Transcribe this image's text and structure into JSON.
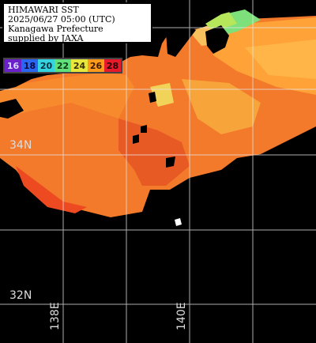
{
  "title": {
    "lines": [
      "HIMAWARI SST",
      "2025/06/27 05:00 (UTC)",
      "Kanagawa Prefecture",
      "supplied by JAXA"
    ]
  },
  "legend": {
    "items": [
      {
        "label": "16",
        "color": "#6a22c8",
        "text_color": "#d8d8ff"
      },
      {
        "label": "18",
        "color": "#2b66f0",
        "text_color": "#0a0a40"
      },
      {
        "label": "20",
        "color": "#33d4e0",
        "text_color": "#083040"
      },
      {
        "label": "22",
        "color": "#5fe07a",
        "text_color": "#0b3a10"
      },
      {
        "label": "24",
        "color": "#e8e83c",
        "text_color": "#3a3000"
      },
      {
        "label": "26",
        "color": "#ff9a1a",
        "text_color": "#3a1a00"
      },
      {
        "label": "28",
        "color": "#e8192a",
        "text_color": "#2a0000"
      }
    ]
  },
  "grid": {
    "lat_labels": [
      "34N",
      "32N"
    ],
    "lon_labels": [
      "138E",
      "140E"
    ]
  }
}
